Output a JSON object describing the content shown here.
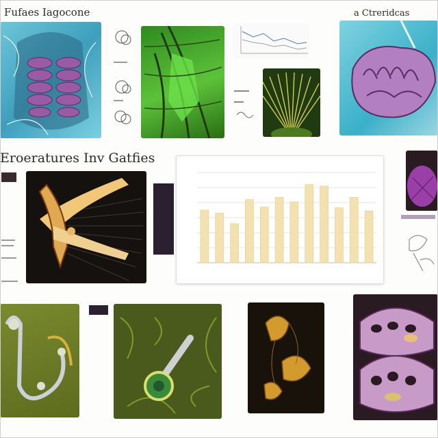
{
  "header": {
    "left_title": "Fufaes Iagocone",
    "right_title": "a Ctreridcas"
  },
  "section": {
    "title": "Eroeratures Inv Gatfies"
  },
  "chart_data": {
    "type": "bar",
    "title": "",
    "categories": [
      "",
      "",
      "",
      "",
      "",
      "",
      "",
      "",
      "",
      "",
      "",
      ""
    ],
    "values": [
      7.0,
      6.6,
      5.2,
      8.4,
      7.4,
      8.7,
      8.1,
      10.4,
      10.2,
      7.3,
      8.7,
      6.9
    ],
    "ylim": [
      0,
      12
    ],
    "bar_color": "#f3e1b0",
    "grid": true
  },
  "colors": {
    "teal": "#3ea7c2",
    "violet": "#8a4a9c",
    "green": "#3f8f22",
    "dark": "#1a1512",
    "olive": "#6e7a2a",
    "cream": "#f3e1b0"
  }
}
